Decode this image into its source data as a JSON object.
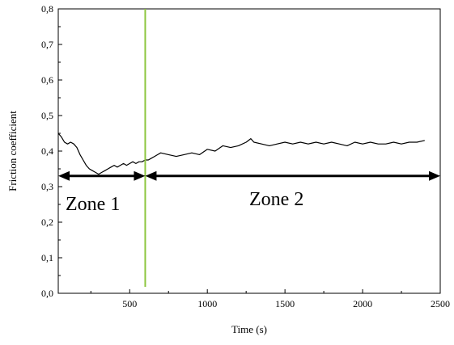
{
  "chart_data": {
    "type": "line",
    "xlabel": "Time (s)",
    "ylabel": "Friction coefficient",
    "xlim": [
      40,
      2500
    ],
    "ylim": [
      0,
      0.8
    ],
    "x_ticks": [
      500,
      1000,
      1500,
      2000,
      2500
    ],
    "x_tick_labels": [
      "500",
      "1000",
      "1500",
      "2000",
      "2500"
    ],
    "y_ticks": [
      0,
      0.1,
      0.2,
      0.3,
      0.4,
      0.5,
      0.6,
      0.7,
      0.8
    ],
    "y_tick_labels": [
      "0,0",
      "0,1",
      "0,2",
      "0,3",
      "0,4",
      "0,5",
      "0,6",
      "0,7",
      "0,8"
    ],
    "grid": false,
    "series": [
      {
        "color": "#000000",
        "x": [
          40,
          60,
          80,
          100,
          120,
          140,
          160,
          180,
          200,
          220,
          240,
          260,
          280,
          300,
          320,
          340,
          360,
          380,
          400,
          420,
          440,
          460,
          480,
          500,
          520,
          540,
          560,
          580,
          600,
          620,
          640,
          660,
          680,
          700,
          750,
          800,
          850,
          900,
          950,
          1000,
          1050,
          1100,
          1150,
          1200,
          1250,
          1280,
          1300,
          1350,
          1400,
          1450,
          1500,
          1550,
          1600,
          1650,
          1700,
          1750,
          1800,
          1850,
          1900,
          1950,
          2000,
          2050,
          2100,
          2150,
          2200,
          2250,
          2300,
          2350,
          2400
        ],
        "y": [
          0.45,
          0.44,
          0.425,
          0.42,
          0.425,
          0.42,
          0.41,
          0.39,
          0.375,
          0.36,
          0.35,
          0.345,
          0.34,
          0.335,
          0.34,
          0.345,
          0.35,
          0.355,
          0.36,
          0.355,
          0.36,
          0.365,
          0.36,
          0.365,
          0.37,
          0.365,
          0.37,
          0.37,
          0.375,
          0.375,
          0.38,
          0.385,
          0.39,
          0.395,
          0.39,
          0.385,
          0.39,
          0.395,
          0.39,
          0.405,
          0.4,
          0.415,
          0.41,
          0.415,
          0.425,
          0.435,
          0.425,
          0.42,
          0.415,
          0.42,
          0.425,
          0.42,
          0.425,
          0.42,
          0.425,
          0.42,
          0.425,
          0.42,
          0.415,
          0.425,
          0.42,
          0.425,
          0.42,
          0.42,
          0.425,
          0.42,
          0.425,
          0.425,
          0.43
        ]
      }
    ],
    "annotations": {
      "divider": {
        "x": 600,
        "color": "#8dc63f"
      },
      "zone1": {
        "label": "Zone 1",
        "x_start": 40,
        "x_end": 600,
        "y": 0.33
      },
      "zone2": {
        "label": "Zone 2",
        "x_start": 600,
        "x_end": 2500,
        "y": 0.33
      }
    }
  }
}
